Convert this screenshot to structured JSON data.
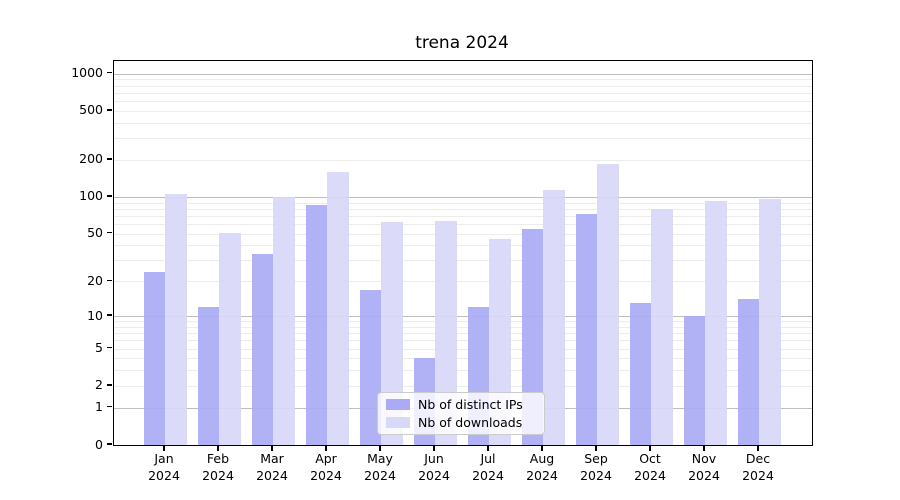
{
  "chart_data": {
    "type": "bar",
    "title": "trena 2024",
    "categories": [
      "Jan 2024",
      "Feb 2024",
      "Mar 2024",
      "Apr 2024",
      "May 2024",
      "Jun 2024",
      "Jul 2024",
      "Aug 2024",
      "Sep 2024",
      "Oct 2024",
      "Nov 2024",
      "Dec 2024"
    ],
    "series": [
      {
        "name": "Nb of distinct IPs",
        "color": "#aaaaf5",
        "values": [
          24,
          12,
          34,
          86,
          17,
          4,
          12,
          55,
          73,
          13,
          10,
          14
        ]
      },
      {
        "name": "Nb of downloads",
        "color": "#d8d8f8",
        "values": [
          105,
          51,
          100,
          160,
          62,
          64,
          45,
          114,
          185,
          80,
          92,
          97
        ]
      }
    ],
    "xlabel": "",
    "ylabel": "",
    "y_scale": "log1p (axis position proportional to log10(1+v))",
    "y_ticks": [
      0,
      1,
      2,
      5,
      10,
      20,
      50,
      100,
      200,
      500,
      1000
    ],
    "ylim": [
      0,
      1265
    ],
    "grid": "horizontal; darker lines at 1,10,100,1000; faint minor lines at 2-9 of each decade",
    "legend_position": "lower center"
  }
}
